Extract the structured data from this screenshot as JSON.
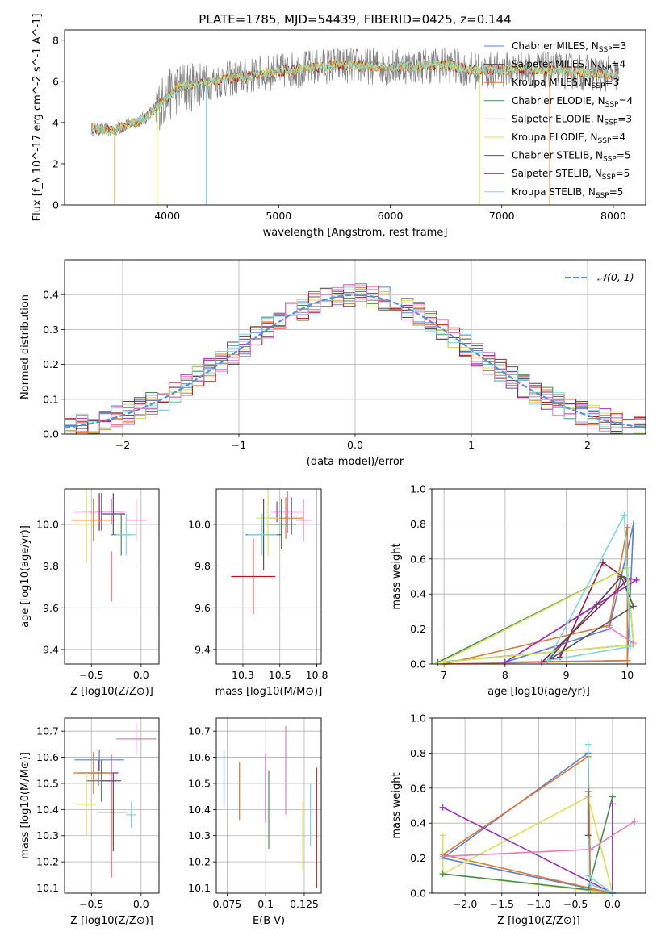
{
  "page_title": "PLATE=1785, MJD=54439, FIBERID=0425, z=0.144",
  "colors": {
    "Chabrier MILES": "#5b7fd6",
    "Salpeter MILES": "#9a1b52",
    "Kroupa MILES": "#dd7a35",
    "Chabrier ELODIE": "#4c8a55",
    "Salpeter ELODIE": "#9b30b6",
    "Kroupa ELODIE": "#d6e25a",
    "Chabrier STELIB": "#555555",
    "Salpeter STELIB": "#b5171a",
    "Kroupa STELIB": "#7fd8db",
    "data_spectrum": "#808080",
    "gaussian": "#5b8fd6",
    "pink": "#e27fb7"
  },
  "chart_data": [
    {
      "id": "spectrum",
      "type": "line",
      "title": "PLATE=1785, MJD=54439, FIBERID=0425, z=0.144",
      "xlabel": "wavelength [Angstrom, rest frame]",
      "ylabel": "Flux [f_λ 10^-17 erg cm^-2 s^-1 A^-1]",
      "xlim": [
        3080,
        8290
      ],
      "ylim": [
        0,
        8.5
      ],
      "xticks": [
        4000,
        5000,
        6000,
        7000,
        8000
      ],
      "yticks": [
        0,
        2,
        4,
        6,
        8
      ],
      "legend": [
        {
          "label": "Chabrier MILES, N",
          "sub": "SSP",
          "suffix": "=3",
          "key": "Chabrier MILES"
        },
        {
          "label": "Salpeter MILES, N",
          "sub": "SSP",
          "suffix": "=4",
          "key": "Salpeter MILES"
        },
        {
          "label": "Kroupa MILES, N",
          "sub": "SSP",
          "suffix": "=3",
          "key": "Kroupa MILES"
        },
        {
          "label": "Chabrier ELODIE, N",
          "sub": "SSP",
          "suffix": "=4",
          "key": "Chabrier ELODIE"
        },
        {
          "label": "Salpeter ELODIE, N",
          "sub": "SSP",
          "suffix": "=3",
          "key": "Salpeter ELODIE"
        },
        {
          "label": "Kroupa ELODIE, N",
          "sub": "SSP",
          "suffix": "=4",
          "key": "Kroupa ELODIE"
        },
        {
          "label": "Chabrier STELIB, N",
          "sub": "SSP",
          "suffix": "=5",
          "key": "Chabrier STELIB"
        },
        {
          "label": "Salpeter STELIB, N",
          "sub": "SSP",
          "suffix": "=5",
          "key": "Salpeter STELIB"
        },
        {
          "label": "Kroupa STELIB, N",
          "sub": "SSP",
          "suffix": "=5",
          "key": "Kroupa STELIB"
        }
      ],
      "legend_position": "right",
      "continuum": [
        [
          3320,
          3.7
        ],
        [
          3500,
          3.6
        ],
        [
          3800,
          4.2
        ],
        [
          3950,
          5.0
        ],
        [
          4100,
          5.7
        ],
        [
          4400,
          6.0
        ],
        [
          4900,
          6.4
        ],
        [
          5500,
          6.8
        ],
        [
          6000,
          6.7
        ],
        [
          6500,
          6.8
        ],
        [
          6800,
          6.5
        ],
        [
          7200,
          6.6
        ],
        [
          7600,
          6.5
        ],
        [
          8050,
          6.3
        ]
      ],
      "model_dropouts": [
        {
          "x": 3530,
          "key": "Kroupa MILES"
        },
        {
          "x": 3910,
          "key": "Kroupa ELODIE"
        },
        {
          "x": 4350,
          "key": "Kroupa STELIB"
        },
        {
          "x": 6800,
          "key": "Kroupa ELODIE"
        },
        {
          "x": 7430,
          "key": "Kroupa MILES"
        }
      ],
      "grid": false
    },
    {
      "id": "residuals",
      "type": "line",
      "xlabel": "(data-model)/error",
      "ylabel": "Normed distribution",
      "xlim": [
        -2.5,
        2.5
      ],
      "ylim": [
        0,
        0.5
      ],
      "xticks": [
        -2,
        -1,
        0,
        1,
        2
      ],
      "yticks": [
        0.0,
        0.1,
        0.2,
        0.3,
        0.4
      ],
      "legend": [
        "𝒩(0, 1)"
      ],
      "legend_position": "top-right",
      "bin_width": 0.1,
      "reference": "gaussian",
      "grid": true
    },
    {
      "id": "age-vs-Z",
      "type": "scatter",
      "xlabel": "Z [log10(Z/Z⊙)]",
      "ylabel": "age [log10(age/yr)]",
      "xlim": [
        -0.77,
        0.18
      ],
      "ylim": [
        9.33,
        10.17
      ],
      "xticks": [
        -0.5,
        0.0
      ],
      "yticks": [
        9.4,
        9.6,
        9.8,
        10.0
      ],
      "points": [
        {
          "key": "Chabrier MILES",
          "x": -0.4,
          "y": 10.06,
          "xerr": 0.2,
          "yerr": 0.09
        },
        {
          "key": "Salpeter MILES",
          "x": -0.42,
          "y": 10.06,
          "xerr": 0.25,
          "yerr": 0.09
        },
        {
          "key": "Kroupa MILES",
          "x": -0.48,
          "y": 10.02,
          "xerr": 0.22,
          "yerr": 0.1
        },
        {
          "key": "Chabrier ELODIE",
          "x": -0.2,
          "y": 9.95,
          "xerr": 0.1,
          "yerr": 0.1
        },
        {
          "key": "Salpeter ELODIE",
          "x": -0.3,
          "y": 10.06,
          "xerr": 0.15,
          "yerr": 0.06
        },
        {
          "key": "Kroupa ELODIE",
          "x": -0.55,
          "y": 10.0,
          "xerr": 0.1,
          "yerr": 0.18
        },
        {
          "key": "Chabrier STELIB",
          "x": -0.28,
          "y": 10.05,
          "xerr": 0.12,
          "yerr": 0.1
        },
        {
          "key": "Salpeter STELIB",
          "x": -0.3,
          "y": 9.75,
          "xerr": 0.0,
          "yerr": 0.12
        },
        {
          "key": "Kroupa STELIB",
          "x": -0.15,
          "y": 9.95,
          "xerr": 0.1,
          "yerr": 0.1
        },
        {
          "key": "pink",
          "x": -0.05,
          "y": 10.02,
          "xerr": 0.1,
          "yerr": 0.1
        }
      ],
      "grid": true
    },
    {
      "id": "age-vs-mass",
      "type": "scatter",
      "xlabel": "mass [log10(M/M⊙)]",
      "ylabel": "",
      "xlim": [
        10.07,
        10.78
      ],
      "ylim": [
        9.33,
        10.17
      ],
      "xticks": [
        10.25,
        10.5,
        10.75
      ],
      "yticks": [
        9.4,
        9.6,
        9.8,
        10.0
      ],
      "points": [
        {
          "key": "Chabrier MILES",
          "x": 10.58,
          "y": 10.04,
          "xerr": 0.05,
          "yerr": 0.09
        },
        {
          "key": "Salpeter MILES",
          "x": 10.55,
          "y": 10.06,
          "xerr": 0.1,
          "yerr": 0.1
        },
        {
          "key": "Kroupa MILES",
          "x": 10.54,
          "y": 10.03,
          "xerr": 0.12,
          "yerr": 0.1
        },
        {
          "key": "Chabrier ELODIE",
          "x": 10.51,
          "y": 10.0,
          "xerr": 0.1,
          "yerr": 0.12
        },
        {
          "key": "Salpeter ELODIE",
          "x": 10.48,
          "y": 10.06,
          "xerr": 0.05,
          "yerr": 0.05
        },
        {
          "key": "Kroupa ELODIE",
          "x": 10.42,
          "y": 10.03,
          "xerr": 0.08,
          "yerr": 0.18
        },
        {
          "key": "Chabrier STELIB",
          "x": 10.39,
          "y": 9.95,
          "xerr": 0.12,
          "yerr": 0.17
        },
        {
          "key": "Salpeter STELIB",
          "x": 10.32,
          "y": 9.75,
          "xerr": 0.15,
          "yerr": 0.18
        },
        {
          "key": "Kroupa STELIB",
          "x": 10.38,
          "y": 9.95,
          "xerr": 0.1,
          "yerr": 0.1
        },
        {
          "key": "pink",
          "x": 10.66,
          "y": 10.02,
          "xerr": 0.05,
          "yerr": 0.1
        }
      ],
      "grid": true
    },
    {
      "id": "mass-weight-vs-age",
      "type": "line",
      "xlabel": "age [log10(age/yr)]",
      "ylabel": "mass weight",
      "xlim": [
        6.8,
        10.3
      ],
      "ylim": [
        0,
        1.0
      ],
      "xticks": [
        7,
        8,
        9,
        10
      ],
      "yticks": [
        0.0,
        0.2,
        0.4,
        0.6,
        0.8,
        1.0
      ],
      "series": [
        {
          "key": "Chabrier MILES",
          "points": [
            [
              8.0,
              0.01
            ],
            [
              9.7,
              0.2
            ],
            [
              10.1,
              0.8
            ],
            [
              10.0,
              0.02
            ],
            [
              8.0,
              0.01
            ]
          ]
        },
        {
          "key": "Kroupa MILES",
          "points": [
            [
              7.0,
              0.0
            ],
            [
              9.7,
              0.22
            ],
            [
              10.0,
              0.78
            ],
            [
              10.0,
              0.02
            ],
            [
              7.0,
              0.0
            ]
          ]
        },
        {
          "key": "Salpeter MILES",
          "points": [
            [
              8.6,
              0.01
            ],
            [
              8.9,
              0.04
            ],
            [
              9.6,
              0.58
            ],
            [
              10.0,
              0.48
            ],
            [
              8.6,
              0.01
            ]
          ]
        },
        {
          "key": "Chabrier ELODIE",
          "points": [
            [
              6.9,
              0.01
            ],
            [
              10.0,
              0.55
            ],
            [
              10.1,
              0.11
            ],
            [
              6.9,
              0.01
            ]
          ]
        },
        {
          "key": "Salpeter ELODIE",
          "points": [
            [
              8.0,
              0.01
            ],
            [
              9.5,
              0.34
            ],
            [
              9.9,
              0.5
            ],
            [
              10.15,
              0.48
            ],
            [
              8.0,
              0.01
            ]
          ]
        },
        {
          "key": "Kroupa ELODIE",
          "points": [
            [
              6.95,
              0.01
            ],
            [
              10.0,
              0.55
            ],
            [
              10.1,
              0.11
            ],
            [
              6.95,
              0.01
            ]
          ]
        },
        {
          "key": "Chabrier STELIB",
          "points": [
            [
              8.7,
              0.02
            ],
            [
              9.9,
              0.5
            ],
            [
              10.1,
              0.33
            ],
            [
              8.7,
              0.02
            ]
          ]
        },
        {
          "key": "Kroupa STELIB",
          "points": [
            [
              8.7,
              0.02
            ],
            [
              9.95,
              0.85
            ],
            [
              10.05,
              0.1
            ],
            [
              8.7,
              0.02
            ]
          ]
        },
        {
          "key": "pink",
          "points": [
            [
              9.7,
              0.21
            ],
            [
              10.1,
              0.12
            ]
          ]
        }
      ],
      "grid": true
    },
    {
      "id": "mass-vs-Z",
      "type": "scatter",
      "xlabel": "Z [log10(Z/Z⊙)]",
      "ylabel": "mass [log10(M/M⊙)]",
      "xlim": [
        -0.77,
        0.18
      ],
      "ylim": [
        10.08,
        10.75
      ],
      "xticks": [
        -0.5,
        0.0
      ],
      "yticks": [
        10.1,
        10.2,
        10.3,
        10.4,
        10.5,
        10.6,
        10.7
      ],
      "points": [
        {
          "key": "Chabrier MILES",
          "x": -0.42,
          "y": 10.59,
          "xerr": 0.25,
          "yerr": 0.04
        },
        {
          "key": "Salpeter MILES",
          "x": -0.43,
          "y": 10.54,
          "xerr": 0.2,
          "yerr": 0.05
        },
        {
          "key": "Kroupa MILES",
          "x": -0.48,
          "y": 10.54,
          "xerr": 0.2,
          "yerr": 0.08
        },
        {
          "key": "Chabrier ELODIE",
          "x": -0.4,
          "y": 10.51,
          "xerr": 0.15,
          "yerr": 0.08
        },
        {
          "key": "Salpeter ELODIE",
          "x": -0.3,
          "y": 10.51,
          "xerr": 0.1,
          "yerr": 0.1
        },
        {
          "key": "Kroupa ELODIE",
          "x": -0.55,
          "y": 10.42,
          "xerr": 0.1,
          "yerr": 0.12
        },
        {
          "key": "Chabrier STELIB",
          "x": -0.28,
          "y": 10.39,
          "xerr": 0.15,
          "yerr": 0.15
        },
        {
          "key": "Salpeter STELIB",
          "x": -0.3,
          "y": 10.32,
          "xerr": 0.0,
          "yerr": 0.18
        },
        {
          "key": "Kroupa STELIB",
          "x": -0.1,
          "y": 10.38,
          "xerr": 0.05,
          "yerr": 0.05
        },
        {
          "key": "pink",
          "x": -0.05,
          "y": 10.67,
          "xerr": 0.2,
          "yerr": 0.06
        }
      ],
      "grid": true
    },
    {
      "id": "mass-vs-EBV",
      "type": "scatter",
      "xlabel": "E(B-V)",
      "ylabel": "",
      "xlim": [
        0.068,
        0.136
      ],
      "ylim": [
        10.08,
        10.75
      ],
      "xticks": [
        0.075,
        0.1,
        0.125
      ],
      "yticks": [
        10.1,
        10.2,
        10.3,
        10.4,
        10.5,
        10.6,
        10.7
      ],
      "points": [
        {
          "key": "Chabrier MILES",
          "x": 0.073,
          "y": 10.52,
          "xerr": 0.0,
          "yerr": 0.11
        },
        {
          "key": "Kroupa MILES",
          "x": 0.083,
          "y": 10.47,
          "xerr": 0.0,
          "yerr": 0.11
        },
        {
          "key": "Salpeter ELODIE",
          "x": 0.1,
          "y": 10.48,
          "xerr": 0.0,
          "yerr": 0.13
        },
        {
          "key": "Chabrier ELODIE",
          "x": 0.102,
          "y": 10.4,
          "xerr": 0.0,
          "yerr": 0.15
        },
        {
          "key": "pink",
          "x": 0.113,
          "y": 10.55,
          "xerr": 0.0,
          "yerr": 0.17
        },
        {
          "key": "Kroupa ELODIE",
          "x": 0.124,
          "y": 10.3,
          "xerr": 0.0,
          "yerr": 0.13
        },
        {
          "key": "Kroupa STELIB",
          "x": 0.129,
          "y": 10.38,
          "xerr": 0.0,
          "yerr": 0.12
        },
        {
          "key": "Salpeter STELIB",
          "x": 0.133,
          "y": 10.33,
          "xerr": 0.0,
          "yerr": 0.23
        }
      ],
      "grid": true
    },
    {
      "id": "mass-weight-vs-Z",
      "type": "line",
      "xlabel": "Z [log10(Z/Z⊙)]",
      "ylabel": "mass weight",
      "xlim": [
        -2.45,
        0.45
      ],
      "ylim": [
        0,
        1.0
      ],
      "xticks": [
        -2.0,
        -1.5,
        -1.0,
        -0.5,
        0.0
      ],
      "yticks": [
        0.0,
        0.2,
        0.4,
        0.6,
        0.8,
        1.0
      ],
      "series": [
        {
          "key": "Chabrier MILES",
          "points": [
            [
              -2.3,
              0.2
            ],
            [
              -0.33,
              0.8
            ],
            [
              -0.3,
              0.02
            ],
            [
              0.0,
              0.0
            ],
            [
              -2.3,
              0.2
            ]
          ]
        },
        {
          "key": "Kroupa MILES",
          "points": [
            [
              -2.3,
              0.22
            ],
            [
              -0.33,
              0.78
            ],
            [
              -0.3,
              0.02
            ],
            [
              0.0,
              0.0
            ],
            [
              -2.3,
              0.22
            ]
          ]
        },
        {
          "key": "Kroupa ELODIE",
          "points": [
            [
              -2.3,
              0.33
            ],
            [
              -2.3,
              0.11
            ],
            [
              -0.33,
              0.55
            ],
            [
              0.0,
              0.0
            ],
            [
              -2.3,
              0.11
            ]
          ]
        },
        {
          "key": "Chabrier ELODIE",
          "points": [
            [
              -2.3,
              0.11
            ],
            [
              -0.33,
              0.02
            ],
            [
              0.0,
              0.55
            ],
            [
              0.0,
              0.0
            ]
          ]
        },
        {
          "key": "Salpeter ELODIE",
          "points": [
            [
              -2.3,
              0.49
            ],
            [
              0.0,
              0.0
            ],
            [
              0.0,
              0.51
            ]
          ]
        },
        {
          "key": "pink",
          "points": [
            [
              -2.3,
              0.21
            ],
            [
              -0.3,
              0.25
            ],
            [
              0.3,
              0.41
            ]
          ]
        },
        {
          "key": "Kroupa STELIB",
          "points": [
            [
              -0.33,
              0.85
            ],
            [
              -0.33,
              0.1
            ],
            [
              0.0,
              0.0
            ],
            [
              -0.3,
              0.05
            ]
          ]
        },
        {
          "key": "Chabrier STELIB",
          "points": [
            [
              -0.33,
              0.58
            ],
            [
              -0.33,
              0.33
            ]
          ]
        }
      ],
      "grid": true
    }
  ]
}
